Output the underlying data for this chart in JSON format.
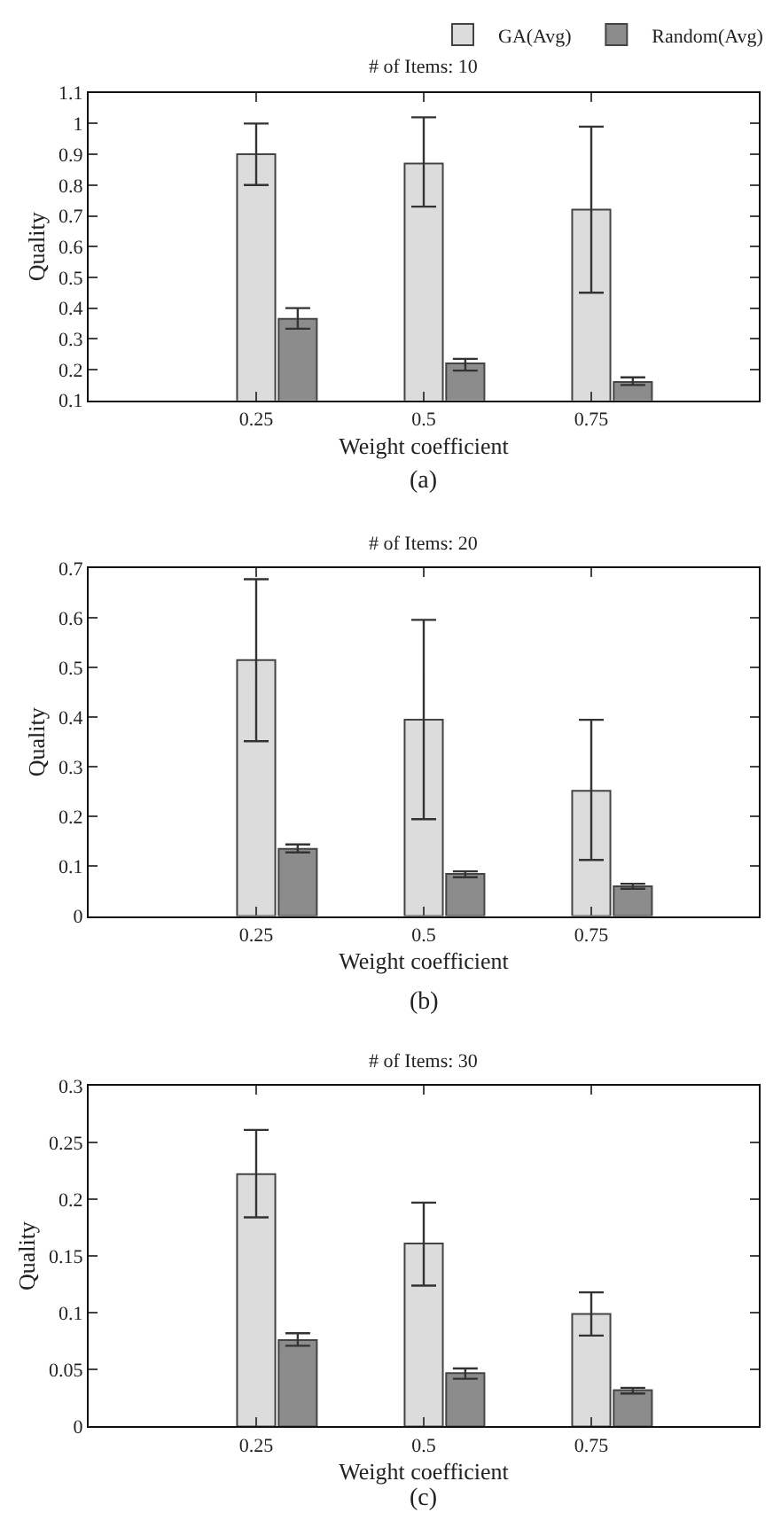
{
  "chart_data": [
    {
      "type": "bar",
      "title": "# of Items: 10",
      "xlabel": "Weight coefficient",
      "ylabel": "Quality",
      "x": [
        0.25,
        0.5,
        0.75
      ],
      "xlim": [
        0,
        1
      ],
      "xticks": [
        0.25,
        0.5,
        0.75
      ],
      "ylim": [
        0.1,
        1.1
      ],
      "yticks": [
        0.1,
        0.2,
        0.3,
        0.4,
        0.5,
        0.6,
        0.7,
        0.8,
        0.9,
        1,
        1.1
      ],
      "legend": "top right",
      "annotations": [
        "(a)"
      ],
      "series": [
        {
          "name": "GA(Avg)",
          "color": "#dcdcdc",
          "values": [
            0.9,
            0.87,
            0.72
          ],
          "errors": [
            [
              0.8,
              1.0
            ],
            [
              0.73,
              1.02
            ],
            [
              0.45,
              0.99
            ]
          ]
        },
        {
          "name": "Random(Avg)",
          "color": "#8c8c8c",
          "values": [
            0.365,
            0.22,
            0.16
          ],
          "errors": [
            [
              0.333,
              0.4
            ],
            [
              0.197,
              0.235
            ],
            [
              0.15,
              0.175
            ]
          ]
        }
      ]
    },
    {
      "type": "bar",
      "title": "# of Items: 20",
      "xlabel": "Weight coefficient",
      "ylabel": "Quality",
      "x": [
        0.25,
        0.5,
        0.75
      ],
      "xlim": [
        0,
        1
      ],
      "xticks": [
        0.25,
        0.5,
        0.75
      ],
      "ylim": [
        0,
        0.7
      ],
      "yticks": [
        0,
        0.1,
        0.2,
        0.3,
        0.4,
        0.5,
        0.6,
        0.7
      ],
      "legend": false,
      "annotations": [
        "(b)"
      ],
      "series": [
        {
          "color": "#dcdcdc",
          "values": [
            0.515,
            0.395,
            0.252
          ],
          "errors": [
            [
              0.352,
              0.678
            ],
            [
              0.195,
              0.596
            ],
            [
              0.113,
              0.395
            ]
          ]
        },
        {
          "color": "#8c8c8c",
          "values": [
            0.135,
            0.085,
            0.06
          ],
          "errors": [
            [
              0.128,
              0.144
            ],
            [
              0.078,
              0.09
            ],
            [
              0.055,
              0.065
            ]
          ]
        }
      ]
    },
    {
      "type": "bar",
      "title": "# of Items: 30",
      "xlabel": "Weight coefficient",
      "ylabel": "Quality",
      "x": [
        0.25,
        0.5,
        0.75
      ],
      "xlim": [
        0,
        1
      ],
      "xticks": [
        0.25,
        0.5,
        0.75
      ],
      "ylim": [
        0,
        0.3
      ],
      "yticks": [
        0,
        0.05,
        0.1,
        0.15,
        0.2,
        0.25,
        0.3
      ],
      "legend": false,
      "annotations": [
        "(c)"
      ],
      "series": [
        {
          "color": "#dcdcdc",
          "values": [
            0.222,
            0.161,
            0.099
          ],
          "errors": [
            [
              0.184,
              0.261
            ],
            [
              0.124,
              0.197
            ],
            [
              0.08,
              0.118
            ]
          ]
        },
        {
          "color": "#8c8c8c",
          "values": [
            0.076,
            0.047,
            0.032
          ],
          "errors": [
            [
              0.071,
              0.082
            ],
            [
              0.042,
              0.051
            ],
            [
              0.029,
              0.034
            ]
          ]
        }
      ]
    }
  ]
}
